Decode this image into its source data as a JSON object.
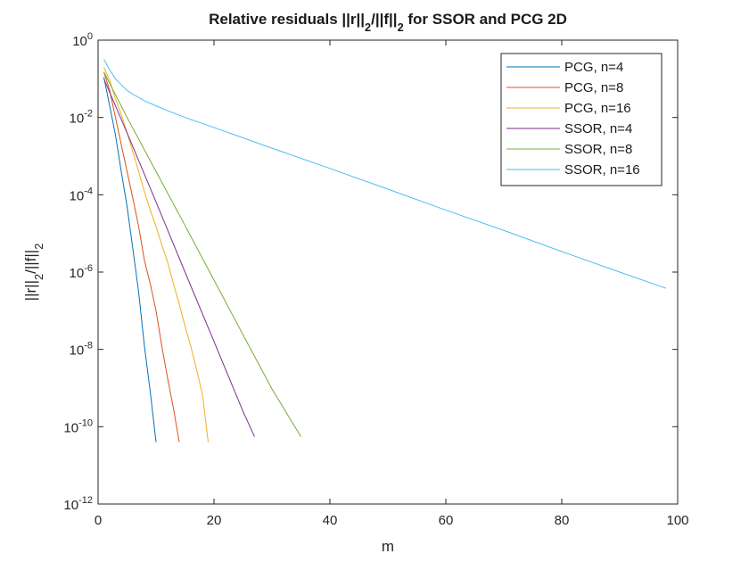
{
  "chart_data": {
    "type": "line",
    "title_parts": [
      {
        "text": "Relative residuals ||r||",
        "sub": false
      },
      {
        "text": "2",
        "sub": true
      },
      {
        "text": "/||f||",
        "sub": false
      },
      {
        "text": "2",
        "sub": true
      },
      {
        "text": " for SSOR and PCG 2D",
        "sub": false
      }
    ],
    "xlabel": "m",
    "ylabel_parts": [
      {
        "text": "||r||",
        "sub": false
      },
      {
        "text": "2",
        "sub": true
      },
      {
        "text": "/||f||",
        "sub": false
      },
      {
        "text": "2",
        "sub": true
      }
    ],
    "xlim": [
      0,
      100
    ],
    "ylim": [
      1e-12,
      1
    ],
    "yscale": "log",
    "xticks": [
      0,
      20,
      40,
      60,
      80,
      100
    ],
    "yticks": [
      {
        "base": "10",
        "exp": "0",
        "value": 1
      },
      {
        "base": "10",
        "exp": "-2",
        "value": 0.01
      },
      {
        "base": "10",
        "exp": "-4",
        "value": 0.0001
      },
      {
        "base": "10",
        "exp": "-6",
        "value": 1e-06
      },
      {
        "base": "10",
        "exp": "-8",
        "value": 1e-08
      },
      {
        "base": "10",
        "exp": "-10",
        "value": 1e-10
      },
      {
        "base": "10",
        "exp": "-12",
        "value": 1e-12
      }
    ],
    "grid": false,
    "legend_position": "top-right",
    "series": [
      {
        "name": "PCG, n=4",
        "color": "#0072BD",
        "x": [
          1,
          2,
          3,
          4,
          5,
          6,
          7,
          8,
          9,
          10
        ],
        "y": [
          0.11,
          0.02,
          0.0035,
          0.0004,
          5e-05,
          4e-06,
          3e-07,
          1.2e-08,
          8e-10,
          4e-11
        ]
      },
      {
        "name": "PCG, n=8",
        "color": "#D95319",
        "x": [
          1,
          2,
          3,
          4,
          5,
          6,
          7,
          8,
          9,
          10,
          11,
          12,
          13,
          14
        ],
        "y": [
          0.15,
          0.05,
          0.01,
          0.002,
          0.0004,
          8e-05,
          1.5e-05,
          2e-06,
          5e-07,
          1e-07,
          1.2e-08,
          1.8e-09,
          3e-10,
          4e-11
        ]
      },
      {
        "name": "PCG, n=16",
        "color": "#EDB120",
        "x": [
          1,
          2,
          3,
          4,
          5,
          6,
          7,
          8,
          9,
          10,
          11,
          12,
          13,
          14,
          15,
          16,
          17,
          18,
          19
        ],
        "y": [
          0.2,
          0.09,
          0.03,
          0.012,
          0.004,
          0.0013,
          0.0004,
          0.00012,
          4e-05,
          1.5e-05,
          5e-06,
          1.8e-06,
          5e-07,
          1.5e-07,
          4e-08,
          1.2e-08,
          3e-09,
          7e-10,
          4e-11
        ]
      },
      {
        "name": "SSOR, n=4",
        "color": "#7E2F8E",
        "x": [
          1,
          5,
          10,
          15,
          20,
          25,
          27
        ],
        "y": [
          0.1,
          0.004,
          6.5e-05,
          1e-06,
          1.6e-08,
          2.5e-10,
          5.5e-11
        ]
      },
      {
        "name": "SSOR, n=8",
        "color": "#77AC30",
        "x": [
          1,
          5,
          10,
          15,
          20,
          25,
          30,
          35
        ],
        "y": [
          0.15,
          0.01,
          0.0004,
          1.6e-05,
          6.2e-07,
          2.4e-08,
          9.5e-10,
          5.5e-11
        ]
      },
      {
        "name": "SSOR, n=16",
        "color": "#4DBEEE",
        "x": [
          1,
          2,
          3,
          4,
          5,
          6,
          8,
          10,
          12,
          15,
          20,
          30,
          40,
          50,
          60,
          70,
          80,
          90,
          98
        ],
        "y": [
          0.32,
          0.17,
          0.1,
          0.07,
          0.05,
          0.04,
          0.027,
          0.02,
          0.015,
          0.01,
          0.0055,
          0.0016,
          0.00048,
          0.00014,
          4e-05,
          1.2e-05,
          3.4e-06,
          1e-06,
          3.8e-07
        ]
      }
    ]
  }
}
